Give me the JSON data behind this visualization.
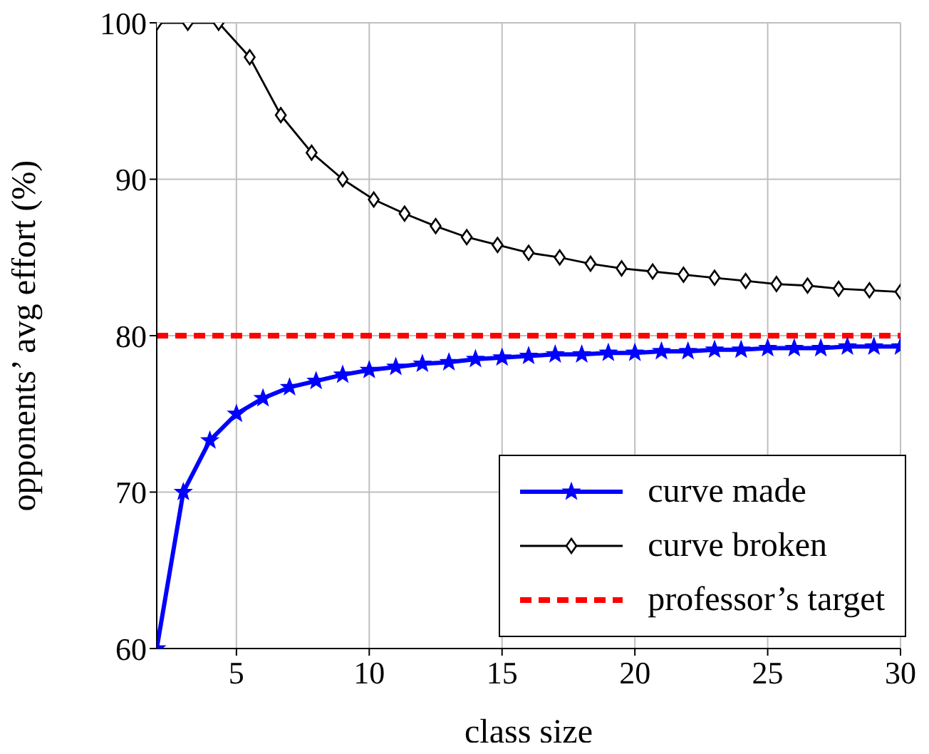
{
  "chart_data": {
    "type": "line",
    "xlabel": "class size",
    "ylabel": "opponents’ avg effort (%)",
    "xlim": [
      2,
      30
    ],
    "ylim": [
      60,
      100
    ],
    "xticks": [
      5,
      10,
      15,
      20,
      25,
      30
    ],
    "yticks": [
      60,
      70,
      80,
      90,
      100
    ],
    "grid": true,
    "legend": "bottom right",
    "line_style": "solid",
    "series": [
      {
        "name": "curve made",
        "color": "#0000ff",
        "marker": "star",
        "x": [
          2,
          3,
          4,
          5,
          6,
          7,
          8,
          9,
          10,
          11,
          12,
          13,
          14,
          15,
          16,
          17,
          18,
          19,
          20,
          21,
          22,
          23,
          24,
          25,
          26,
          27,
          28,
          29,
          30
        ],
        "values": [
          60,
          70,
          73.3,
          75,
          76,
          76.7,
          77.1,
          77.5,
          77.8,
          78,
          78.2,
          78.3,
          78.5,
          78.6,
          78.7,
          78.8,
          78.8,
          78.9,
          78.9,
          79,
          79,
          79.1,
          79.1,
          79.2,
          79.2,
          79.2,
          79.3,
          79.3,
          79.3
        ]
      },
      {
        "name": "curve broken",
        "color": "#000000",
        "marker": "diamond",
        "x": [
          2,
          3.17,
          4.33,
          5.5,
          6.67,
          7.83,
          9,
          10.17,
          11.33,
          12.5,
          13.67,
          14.83,
          16,
          17.17,
          18.33,
          19.5,
          20.67,
          21.83,
          23,
          24.17,
          25.33,
          26.5,
          27.67,
          28.83,
          30
        ],
        "values": [
          100,
          100,
          100,
          97.8,
          94.1,
          91.7,
          90,
          88.7,
          87.8,
          87,
          86.3,
          85.8,
          85.3,
          85,
          84.6,
          84.3,
          84.1,
          83.9,
          83.7,
          83.5,
          83.3,
          83.2,
          83,
          82.9,
          82.8
        ]
      }
    ],
    "ref_lines": [
      {
        "axis": "y",
        "value": 80,
        "label": "professor’s target",
        "color": "#ff0000",
        "line_style": "dashed"
      }
    ]
  }
}
